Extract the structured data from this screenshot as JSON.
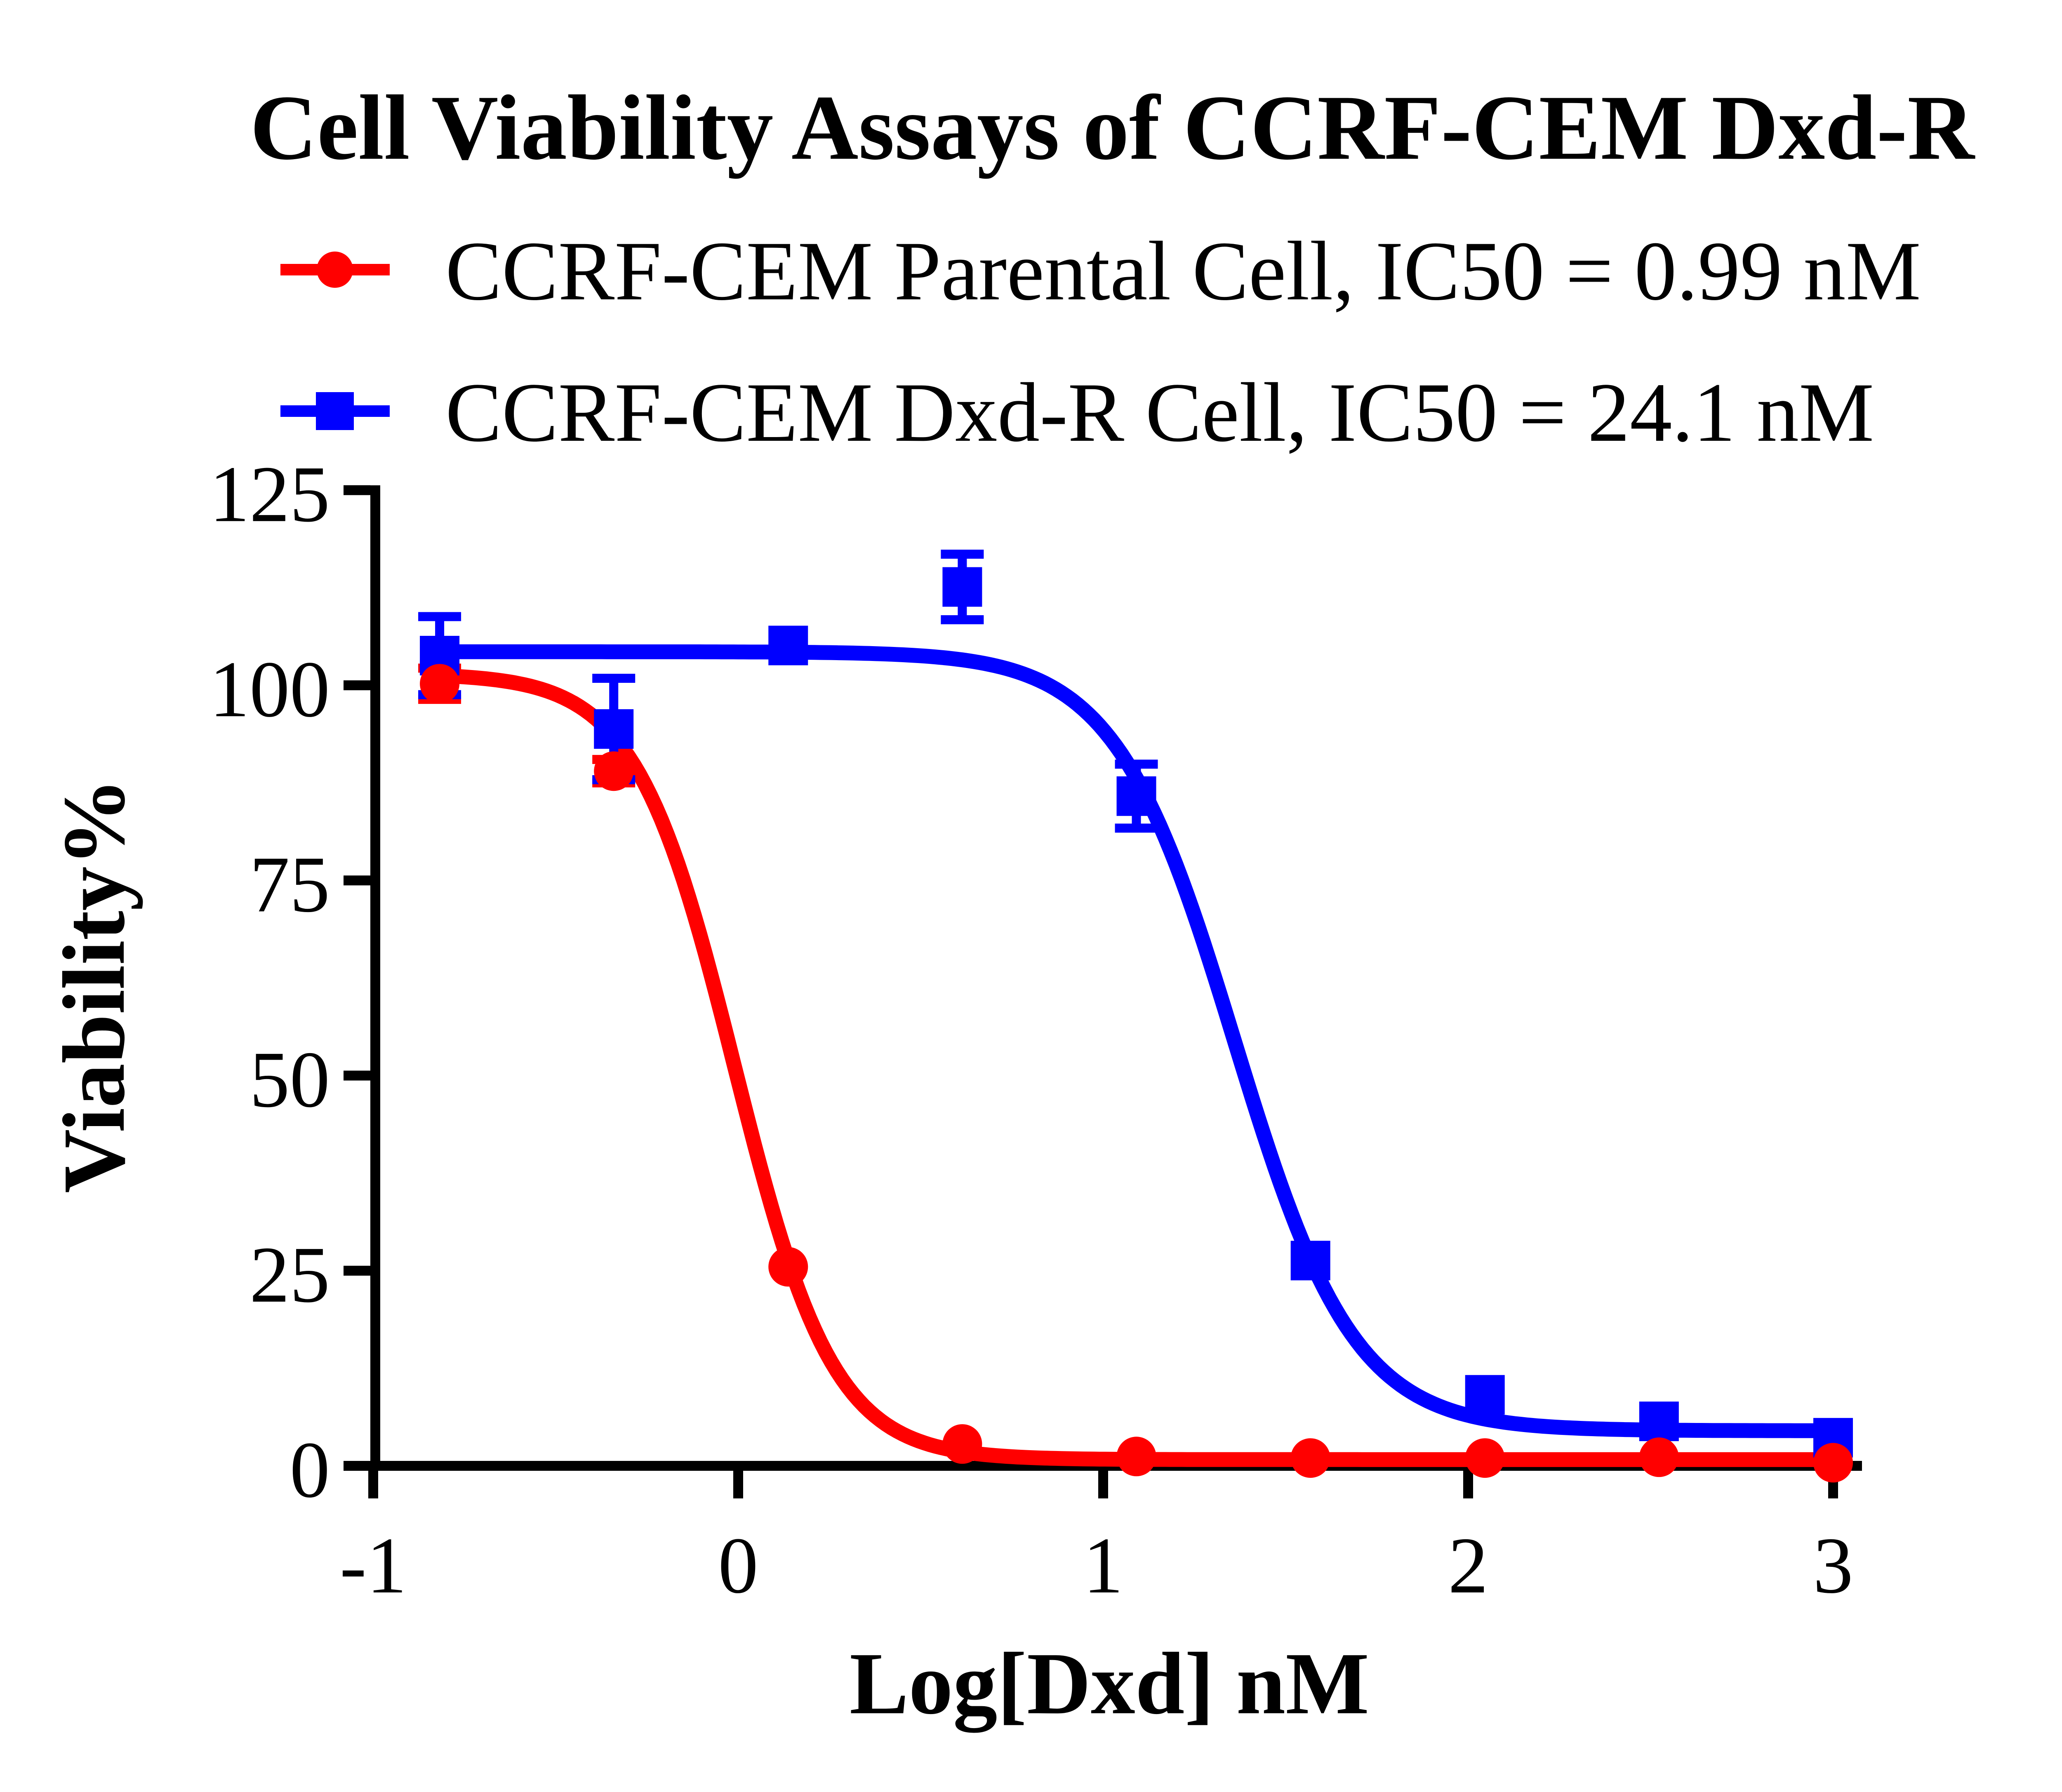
{
  "title": "Cell Viability Assays of CCRF-CEM Dxd-R",
  "colors": {
    "red_series": "#FF0000",
    "blue_series": "#0000FF",
    "axis": "#000000",
    "background": "#FFFFFF"
  },
  "legend": [
    {
      "label": "CCRF-CEM Parental Cell, IC50 = 0.99 nM",
      "marker": "circle-icon",
      "color": "#FF0000"
    },
    {
      "label": "CCRF-CEM Dxd-R Cell, IC50 = 24.1 nM",
      "marker": "square-icon",
      "color": "#0000FF"
    }
  ],
  "chart_data": {
    "type": "scatter",
    "title": "Cell Viability Assays of CCRF-CEM Dxd-R",
    "xlabel": "Log[Dxd] nM",
    "ylabel": "Viability%",
    "xlim": [
      -1,
      3
    ],
    "ylim": [
      0,
      125
    ],
    "x_ticks": [
      -1,
      0,
      1,
      2,
      3
    ],
    "y_ticks": [
      0,
      25,
      50,
      75,
      100,
      125
    ],
    "grid": "off",
    "legend_position": "top-left above plot",
    "x": [
      -0.818,
      -0.341,
      0.137,
      0.614,
      1.091,
      1.568,
      2.046,
      2.523,
      3.0
    ],
    "series": [
      {
        "name": "CCRF-CEM Parental Cell",
        "color": "#FF0000",
        "marker": "circle",
        "ic50_nM": 0.99,
        "y": [
          100.2,
          89.0,
          25.5,
          2.8,
          1.2,
          1.0,
          1.0,
          1.1,
          0.4
        ],
        "err": [
          2.0,
          1.5,
          0,
          0,
          0,
          0,
          0,
          0,
          0
        ],
        "fit": {
          "model": "4PL",
          "top": 101.5,
          "bottom": 0.8,
          "logIC50": -0.01,
          "hill": 3.2
        }
      },
      {
        "name": "CCRF-CEM Dxd-R Cell",
        "color": "#0000FF",
        "marker": "square",
        "ic50_nM": 24.1,
        "y": [
          103.8,
          94.4,
          105.1,
          112.6,
          85.8,
          26.3,
          9.1,
          5.7,
          3.6
        ],
        "err": [
          5.0,
          6.5,
          0,
          4.2,
          4.1,
          0,
          0,
          0,
          0
        ],
        "fit": {
          "model": "4PL",
          "top": 104.3,
          "bottom": 4.5,
          "logIC50": 1.36,
          "hill": 2.65
        }
      }
    ]
  }
}
